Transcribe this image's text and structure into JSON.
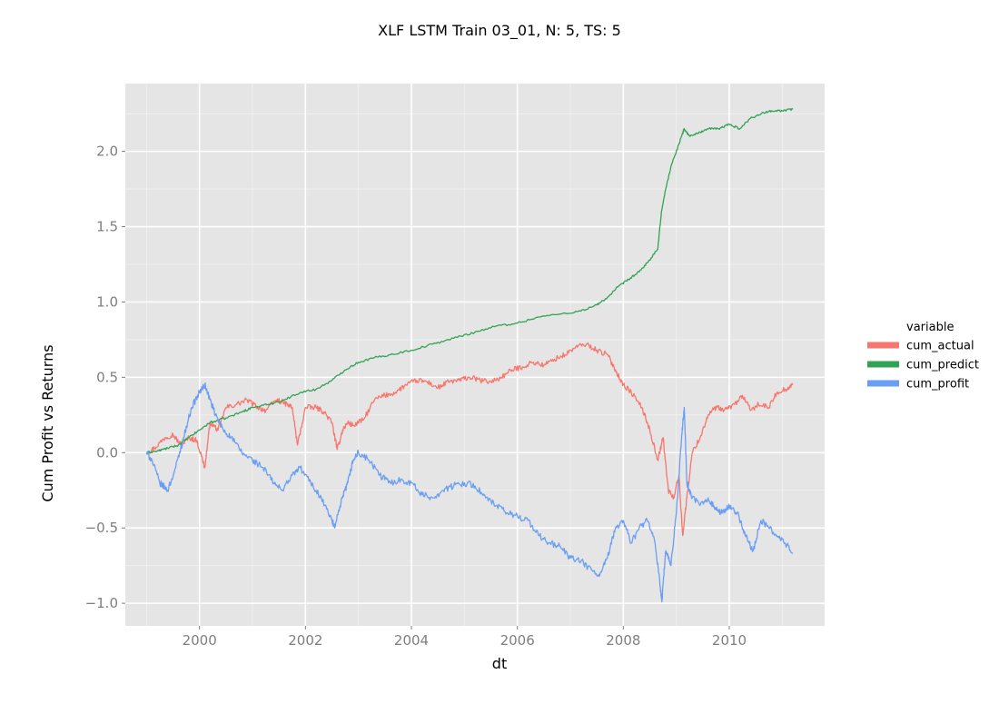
{
  "chart_data": {
    "type": "line",
    "title": "XLF LSTM Train 03_01, N: 5, TS: 5",
    "xlabel": "dt",
    "ylabel": "Cum Profit vs Returns",
    "xlim": [
      1998.6,
      2011.8
    ],
    "ylim": [
      -1.15,
      2.45
    ],
    "x_ticks": [
      2000,
      2002,
      2004,
      2006,
      2008,
      2010
    ],
    "x_tick_labels": [
      "2000",
      "2002",
      "2004",
      "2006",
      "2008",
      "2010"
    ],
    "y_ticks": [
      -1.0,
      -0.5,
      0.0,
      0.5,
      1.0,
      1.5,
      2.0
    ],
    "y_tick_labels": [
      "−1.0",
      "−0.5",
      "0.0",
      "0.5",
      "1.0",
      "1.5",
      "2.0"
    ],
    "grid": true,
    "legend": {
      "title": "variable",
      "placement": "right"
    },
    "series": [
      {
        "name": "cum_actual",
        "color": "#f8766d",
        "x": [
          1999.0,
          1999.15,
          1999.35,
          1999.5,
          1999.65,
          1999.8,
          1999.95,
          2000.1,
          2000.2,
          2000.35,
          2000.5,
          2000.7,
          2000.9,
          2001.1,
          2001.25,
          2001.45,
          2001.6,
          2001.75,
          2001.85,
          2002.0,
          2002.2,
          2002.35,
          2002.5,
          2002.6,
          2002.7,
          2002.8,
          2002.9,
          2003.1,
          2003.3,
          2003.5,
          2003.7,
          2003.9,
          2004.1,
          2004.3,
          2004.5,
          2004.7,
          2004.9,
          2005.1,
          2005.3,
          2005.5,
          2005.7,
          2005.9,
          2006.1,
          2006.3,
          2006.5,
          2006.7,
          2006.9,
          2007.1,
          2007.3,
          2007.5,
          2007.7,
          2007.85,
          2008.0,
          2008.15,
          2008.35,
          2008.5,
          2008.65,
          2008.75,
          2008.85,
          2008.95,
          2009.05,
          2009.12,
          2009.2,
          2009.3,
          2009.45,
          2009.6,
          2009.75,
          2009.9,
          2010.1,
          2010.25,
          2010.4,
          2010.55,
          2010.75,
          2010.9,
          2011.05,
          2011.2
        ],
        "y": [
          0.0,
          0.03,
          0.1,
          0.12,
          0.05,
          0.1,
          0.08,
          -0.1,
          0.2,
          0.15,
          0.3,
          0.32,
          0.35,
          0.3,
          0.28,
          0.35,
          0.33,
          0.3,
          0.05,
          0.3,
          0.3,
          0.27,
          0.2,
          0.02,
          0.15,
          0.2,
          0.18,
          0.22,
          0.35,
          0.38,
          0.4,
          0.45,
          0.48,
          0.47,
          0.43,
          0.47,
          0.48,
          0.5,
          0.48,
          0.47,
          0.5,
          0.55,
          0.57,
          0.6,
          0.58,
          0.62,
          0.65,
          0.7,
          0.72,
          0.68,
          0.65,
          0.55,
          0.45,
          0.4,
          0.3,
          0.15,
          -0.05,
          0.1,
          -0.25,
          -0.3,
          -0.15,
          -0.55,
          -0.3,
          0.0,
          0.1,
          0.25,
          0.3,
          0.28,
          0.32,
          0.38,
          0.28,
          0.32,
          0.3,
          0.4,
          0.42,
          0.45
        ]
      },
      {
        "name": "cum_predict",
        "color": "#31a354",
        "x": [
          1999.0,
          1999.2,
          1999.4,
          1999.6,
          1999.8,
          2000.0,
          2000.2,
          2000.5,
          2000.8,
          2001.0,
          2001.3,
          2001.6,
          2001.9,
          2002.2,
          2002.5,
          2002.75,
          2003.0,
          2003.3,
          2003.6,
          2004.0,
          2004.4,
          2004.8,
          2005.2,
          2005.6,
          2006.0,
          2006.4,
          2006.8,
          2007.2,
          2007.5,
          2007.7,
          2007.9,
          2008.1,
          2008.3,
          2008.5,
          2008.65,
          2008.72,
          2008.8,
          2008.9,
          2009.0,
          2009.1,
          2009.15,
          2009.25,
          2009.4,
          2009.6,
          2009.8,
          2010.0,
          2010.2,
          2010.4,
          2010.6,
          2010.8,
          2011.0,
          2011.2
        ],
        "y": [
          0.0,
          0.01,
          0.03,
          0.05,
          0.1,
          0.15,
          0.2,
          0.23,
          0.27,
          0.3,
          0.32,
          0.35,
          0.4,
          0.42,
          0.48,
          0.55,
          0.6,
          0.63,
          0.65,
          0.68,
          0.72,
          0.76,
          0.8,
          0.84,
          0.86,
          0.9,
          0.92,
          0.94,
          0.98,
          1.03,
          1.1,
          1.15,
          1.2,
          1.28,
          1.35,
          1.6,
          1.75,
          1.9,
          2.0,
          2.1,
          2.15,
          2.1,
          2.12,
          2.15,
          2.15,
          2.18,
          2.15,
          2.22,
          2.25,
          2.27,
          2.27,
          2.28
        ]
      },
      {
        "name": "cum_profit",
        "color": "#6a9ef5",
        "x": [
          1999.0,
          1999.1,
          1999.25,
          1999.4,
          1999.55,
          1999.7,
          1999.85,
          2000.0,
          2000.1,
          2000.2,
          2000.3,
          2000.45,
          2000.6,
          2000.8,
          2001.0,
          2001.2,
          2001.4,
          2001.55,
          2001.75,
          2001.9,
          2002.1,
          2002.3,
          2002.5,
          2002.55,
          2002.7,
          2002.8,
          2002.9,
          2003.0,
          2003.2,
          2003.4,
          2003.6,
          2003.8,
          2004.0,
          2004.2,
          2004.4,
          2004.6,
          2004.8,
          2005.0,
          2005.2,
          2005.4,
          2005.6,
          2005.8,
          2006.0,
          2006.2,
          2006.4,
          2006.6,
          2006.8,
          2007.0,
          2007.2,
          2007.4,
          2007.55,
          2007.7,
          2007.85,
          2008.0,
          2008.15,
          2008.3,
          2008.45,
          2008.6,
          2008.7,
          2008.73,
          2008.8,
          2008.9,
          2009.0,
          2009.1,
          2009.15,
          2009.2,
          2009.3,
          2009.45,
          2009.6,
          2009.75,
          2009.9,
          2010.0,
          2010.15,
          2010.3,
          2010.45,
          2010.6,
          2010.75,
          2010.9,
          2011.05,
          2011.2
        ],
        "y": [
          0.0,
          -0.05,
          -0.2,
          -0.25,
          -0.1,
          0.1,
          0.3,
          0.4,
          0.45,
          0.35,
          0.25,
          0.15,
          0.1,
          0.0,
          -0.05,
          -0.1,
          -0.2,
          -0.25,
          -0.15,
          -0.1,
          -0.2,
          -0.3,
          -0.45,
          -0.5,
          -0.3,
          -0.2,
          -0.05,
          0.0,
          -0.05,
          -0.15,
          -0.2,
          -0.18,
          -0.2,
          -0.28,
          -0.3,
          -0.25,
          -0.22,
          -0.2,
          -0.22,
          -0.3,
          -0.35,
          -0.4,
          -0.42,
          -0.45,
          -0.55,
          -0.6,
          -0.62,
          -0.7,
          -0.72,
          -0.78,
          -0.82,
          -0.7,
          -0.5,
          -0.45,
          -0.6,
          -0.5,
          -0.45,
          -0.6,
          -0.9,
          -0.98,
          -0.65,
          -0.75,
          -0.4,
          0.1,
          0.3,
          -0.2,
          -0.3,
          -0.35,
          -0.3,
          -0.38,
          -0.4,
          -0.35,
          -0.4,
          -0.55,
          -0.65,
          -0.45,
          -0.5,
          -0.55,
          -0.6,
          -0.67
        ]
      }
    ]
  }
}
